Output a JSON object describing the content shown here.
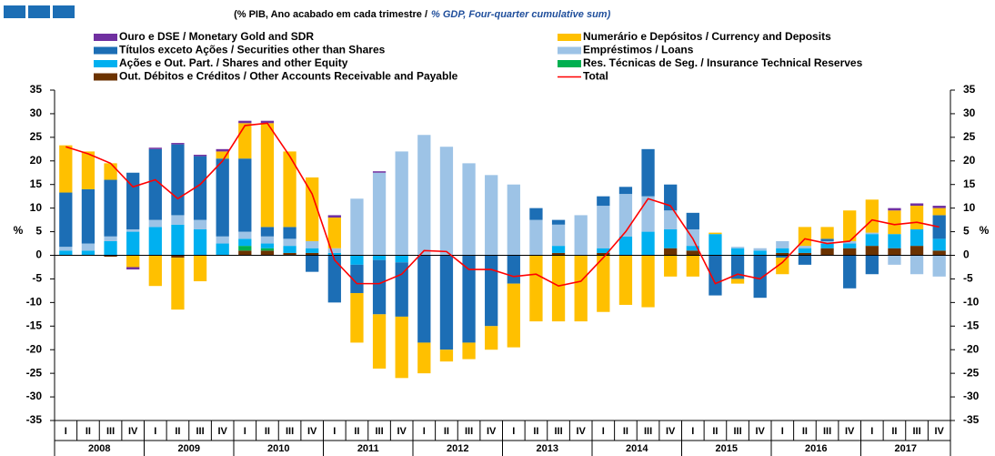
{
  "chart_data": {
    "type": "bar",
    "title_pt": "(% PIB, Ano acabado em cada trimestre  /",
    "title_en": "% GDP, Four-quarter cumulative sum)",
    "ylabel": "%",
    "ylim": [
      -35,
      35
    ],
    "yticks": [
      -35,
      -30,
      -25,
      -20,
      -15,
      -10,
      -5,
      0,
      5,
      10,
      15,
      20,
      25,
      30,
      35
    ],
    "categories": [
      "I",
      "II",
      "III",
      "IV",
      "I",
      "II",
      "III",
      "IV",
      "I",
      "II",
      "III",
      "IV",
      "I",
      "II",
      "III",
      "IV",
      "I",
      "II",
      "III",
      "IV",
      "I",
      "II",
      "III",
      "IV",
      "I",
      "II",
      "III",
      "IV",
      "I",
      "II",
      "III",
      "IV",
      "I",
      "II",
      "III",
      "IV",
      "I",
      "II",
      "III",
      "IV"
    ],
    "years": [
      "2008",
      "2009",
      "2010",
      "2011",
      "2012",
      "2013",
      "2014",
      "2015",
      "2016",
      "2017"
    ],
    "series": [
      {
        "name": "Ouro e DSE / Monetary Gold and SDR",
        "color": "#7030a0",
        "values": [
          0,
          0,
          0,
          -0.5,
          0.3,
          0.3,
          0.3,
          0.5,
          0.5,
          0.5,
          0,
          0,
          0.5,
          0,
          0.3,
          0,
          0,
          0,
          0,
          0,
          0,
          0,
          0,
          0,
          0,
          0,
          0,
          0,
          0,
          0,
          0,
          0,
          0,
          0,
          0,
          0,
          0,
          0.5,
          0.5,
          0.5
        ]
      },
      {
        "name": "Numerário e Depósitos / Currency and Deposits",
        "color": "#ffc000",
        "values": [
          10,
          8,
          3.5,
          -2.5,
          -6.5,
          -11,
          -5.5,
          1.5,
          7.5,
          22,
          16,
          13.5,
          6.5,
          -10.5,
          -11.5,
          -13,
          -6.5,
          -2.5,
          -3.5,
          -5,
          -13.5,
          -14,
          -14,
          -14,
          -12,
          -10.5,
          -11,
          -4.5,
          -4.5,
          0.3,
          -1,
          0,
          -3.5,
          4,
          2.5,
          6.5,
          7,
          5,
          5,
          1.5
        ]
      },
      {
        "name": "Títulos exceto Ações / Securities other than Shares",
        "color": "#1c6eb5",
        "values": [
          11.5,
          11.5,
          12,
          12,
          15,
          15,
          13.5,
          16.5,
          15.5,
          2,
          2.5,
          -3.5,
          -10,
          -6,
          -11.5,
          -11.5,
          -18.5,
          -20,
          -18.5,
          -15,
          -6,
          2.5,
          1,
          0,
          2,
          1.5,
          10,
          5.5,
          3.5,
          -8.5,
          -5,
          -9,
          -0.5,
          -2,
          0.5,
          -7,
          -4,
          0,
          0,
          5
        ]
      },
      {
        "name": "Empréstimos / Loans",
        "color": "#9dc3e6",
        "values": [
          0.8,
          1.5,
          1,
          0.5,
          1.5,
          2,
          2,
          1.5,
          1.5,
          1.5,
          1.5,
          1.5,
          1,
          12,
          17.5,
          22,
          25.5,
          23,
          19.5,
          17,
          15,
          7.5,
          4.5,
          8.5,
          9,
          9,
          7.5,
          4,
          3.5,
          0,
          0.3,
          0.5,
          1.5,
          0.5,
          0.5,
          0.5,
          0.3,
          -2,
          -4,
          -4.5
        ]
      },
      {
        "name": "Ações e Out. Part. / Shares and other Equity",
        "color": "#00b0f0",
        "values": [
          1,
          1,
          3,
          5,
          6,
          6.5,
          5.5,
          2.5,
          1.5,
          1,
          1.5,
          1,
          0.5,
          -2,
          -1,
          -1.5,
          0,
          0,
          0,
          0,
          0,
          0,
          1.5,
          0,
          1,
          4,
          5,
          4,
          1,
          4.5,
          1.5,
          1,
          1,
          1,
          1,
          1,
          2.5,
          3,
          3.5,
          2.5
        ]
      },
      {
        "name": "Res. Técnicas de Seg. / Insurance Technical Reserves",
        "color": "#00b050",
        "values": [
          0,
          0,
          0,
          0,
          0,
          0,
          0,
          0,
          1,
          0.5,
          0,
          0,
          0,
          0,
          0,
          0,
          0,
          0,
          0,
          0,
          0,
          0,
          0,
          0,
          0,
          0,
          0,
          0,
          0,
          0,
          0,
          0,
          0,
          0,
          0,
          0,
          0,
          0,
          0,
          0
        ]
      },
      {
        "name": "Out. Débitos e Créditos / Other Accounts Receivable and Payable",
        "color": "#6b3200",
        "values": [
          0,
          0,
          -0.3,
          0,
          0,
          -0.5,
          0,
          0,
          1,
          1,
          0.5,
          0.5,
          0,
          0,
          0,
          0,
          0,
          0,
          0,
          0,
          0,
          0,
          0.5,
          0,
          0.5,
          0,
          0,
          1.5,
          1,
          0,
          0,
          0,
          0.5,
          0.5,
          1.5,
          1.5,
          2,
          1.5,
          2,
          1
        ]
      }
    ],
    "total": {
      "name": "Total",
      "color": "#ff0000",
      "values": [
        23,
        21.5,
        19.5,
        14.5,
        16,
        12,
        15,
        20,
        27.5,
        28,
        21,
        13,
        -1,
        -6,
        -6,
        -4,
        1,
        0.8,
        -3,
        -3,
        -4.5,
        -4,
        -6.5,
        -5.5,
        -0.5,
        5,
        12,
        10.5,
        3.5,
        -6,
        -4,
        -5,
        -1.5,
        3.5,
        2.5,
        3,
        7.5,
        6.5,
        7,
        6
      ]
    }
  }
}
